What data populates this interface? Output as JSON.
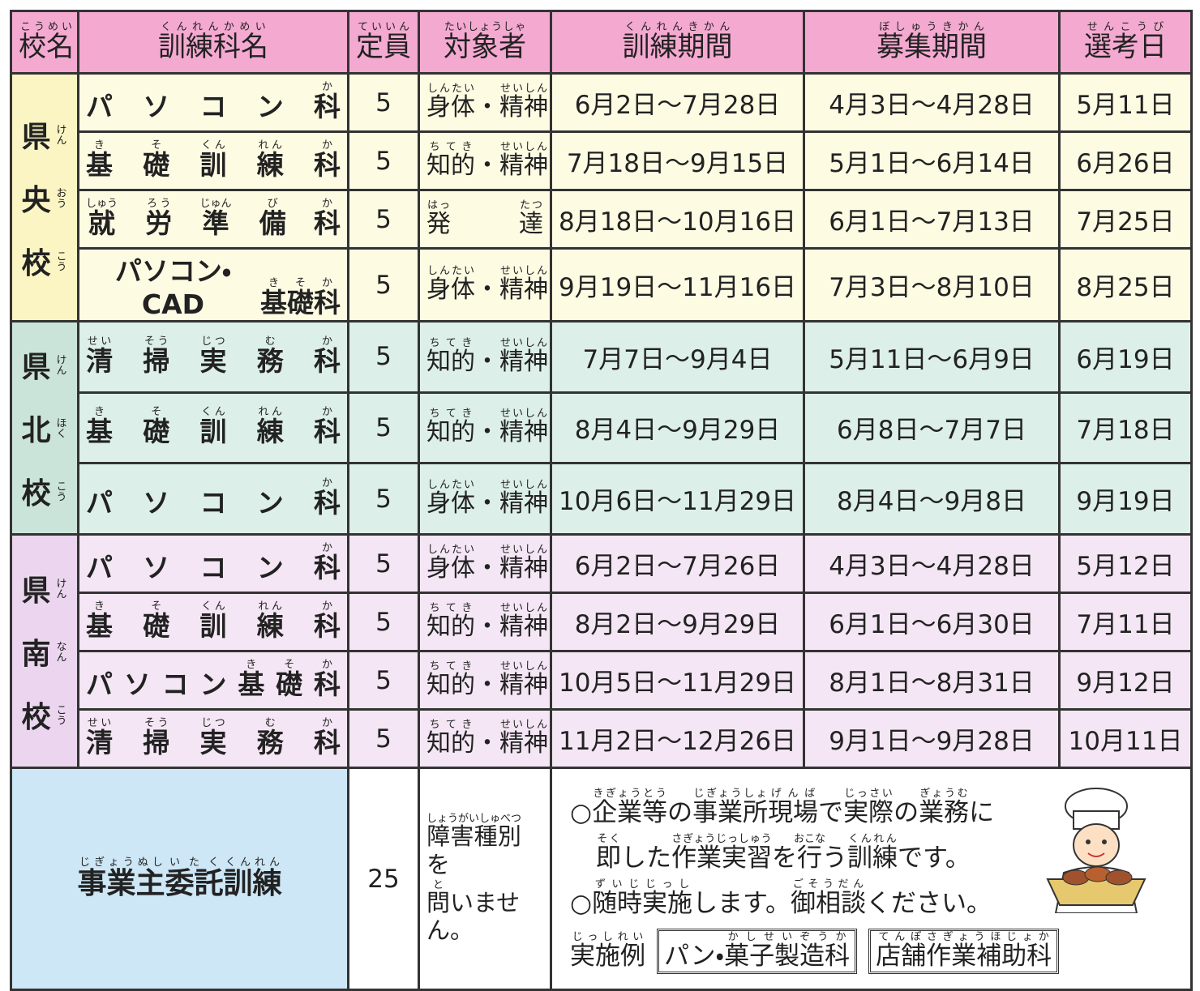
{
  "header": [
    [
      {
        "t": "校名",
        "r": "こうめい"
      }
    ],
    [
      {
        "t": "訓練科名",
        "r": "くんれんかめい"
      }
    ],
    [
      {
        "t": "定員",
        "r": "ていいん"
      }
    ],
    [
      {
        "t": "対象者",
        "r": "たいしょうしゃ"
      }
    ],
    [
      {
        "t": "訓練期間",
        "r": "くんれんきかん"
      }
    ],
    [
      {
        "t": "募集期間",
        "r": "ぼしゅうきかん"
      }
    ],
    [
      {
        "t": "選考日",
        "r": "せんこうび"
      }
    ]
  ],
  "schools": [
    {
      "name": [
        {
          "t": "県",
          "r": "けん"
        },
        {
          "t": "央",
          "r": "おう"
        },
        {
          "t": "校",
          "r": "こう"
        }
      ],
      "courses": [
        {
          "course": [
            {
              "t": "パ"
            },
            {
              "t": "ソ"
            },
            {
              "t": "コ"
            },
            {
              "t": "ン"
            },
            {
              "t": "科",
              "r": "か"
            }
          ],
          "capacity": 5,
          "target": [
            {
              "t": "身体",
              "r": "しんたい"
            },
            {
              "t": "・"
            },
            {
              "t": "精神",
              "r": "せいしん"
            }
          ],
          "training": "6月2日～7月28日",
          "recruitment": "4月3日～4月28日",
          "selection": "5月11日"
        },
        {
          "course": [
            {
              "t": "基",
              "r": "き"
            },
            {
              "t": "礎",
              "r": "そ"
            },
            {
              "t": "訓",
              "r": "くん"
            },
            {
              "t": "練",
              "r": "れん"
            },
            {
              "t": "科",
              "r": "か"
            }
          ],
          "capacity": 5,
          "target": [
            {
              "t": "知的",
              "r": "ちてき"
            },
            {
              "t": "・"
            },
            {
              "t": "精神",
              "r": "せいしん"
            }
          ],
          "training": "7月18日～9月15日",
          "recruitment": "5月1日～6月14日",
          "selection": "6月26日"
        },
        {
          "course": [
            {
              "t": "就",
              "r": "しゅう"
            },
            {
              "t": "労",
              "r": "ろう"
            },
            {
              "t": "準",
              "r": "じゅん"
            },
            {
              "t": "備",
              "r": "び"
            },
            {
              "t": "科",
              "r": "か"
            }
          ],
          "capacity": 5,
          "target": [
            {
              "t": "発",
              "r": "はっ"
            },
            {
              "t": "達",
              "r": "たつ"
            }
          ],
          "training": "8月18日～10月16日",
          "recruitment": "6月1日～7月13日",
          "selection": "7月25日"
        },
        {
          "course": [
            {
              "t": "パソコン・CAD"
            },
            {
              "t": "基",
              "r": "き"
            },
            {
              "t": "礎",
              "r": "そ"
            },
            {
              "t": "科",
              "r": "か"
            }
          ],
          "capacity": 5,
          "target": [
            {
              "t": "身体",
              "r": "しんたい"
            },
            {
              "t": "・"
            },
            {
              "t": "精神",
              "r": "せいしん"
            }
          ],
          "training": "9月19日～11月16日",
          "recruitment": "7月3日～8月10日",
          "selection": "8月25日"
        }
      ]
    },
    {
      "name": [
        {
          "t": "県",
          "r": "けん"
        },
        {
          "t": "北",
          "r": "ほく"
        },
        {
          "t": "校",
          "r": "こう"
        }
      ],
      "courses": [
        {
          "course": [
            {
              "t": "清",
              "r": "せい"
            },
            {
              "t": "掃",
              "r": "そう"
            },
            {
              "t": "実",
              "r": "じつ"
            },
            {
              "t": "務",
              "r": "む"
            },
            {
              "t": "科",
              "r": "か"
            }
          ],
          "capacity": 5,
          "target": [
            {
              "t": "知的",
              "r": "ちてき"
            },
            {
              "t": "・"
            },
            {
              "t": "精神",
              "r": "せいしん"
            }
          ],
          "training": "7月7日～9月4日",
          "recruitment": "5月11日～6月9日",
          "selection": "6月19日"
        },
        {
          "course": [
            {
              "t": "基",
              "r": "き"
            },
            {
              "t": "礎",
              "r": "そ"
            },
            {
              "t": "訓",
              "r": "くん"
            },
            {
              "t": "練",
              "r": "れん"
            },
            {
              "t": "科",
              "r": "か"
            }
          ],
          "capacity": 5,
          "target": [
            {
              "t": "知的",
              "r": "ちてき"
            },
            {
              "t": "・"
            },
            {
              "t": "精神",
              "r": "せいしん"
            }
          ],
          "training": "8月4日～9月29日",
          "recruitment": "6月8日～7月7日",
          "selection": "7月18日"
        },
        {
          "course": [
            {
              "t": "パ"
            },
            {
              "t": "ソ"
            },
            {
              "t": "コ"
            },
            {
              "t": "ン"
            },
            {
              "t": "科",
              "r": "か"
            }
          ],
          "capacity": 5,
          "target": [
            {
              "t": "身体",
              "r": "しんたい"
            },
            {
              "t": "・"
            },
            {
              "t": "精神",
              "r": "せいしん"
            }
          ],
          "training": "10月6日～11月29日",
          "recruitment": "8月4日～9月8日",
          "selection": "9月19日"
        }
      ]
    },
    {
      "name": [
        {
          "t": "県",
          "r": "けん"
        },
        {
          "t": "南",
          "r": "なん"
        },
        {
          "t": "校",
          "r": "こう"
        }
      ],
      "courses": [
        {
          "course": [
            {
              "t": "パ"
            },
            {
              "t": "ソ"
            },
            {
              "t": "コ"
            },
            {
              "t": "ン"
            },
            {
              "t": "科",
              "r": "か"
            }
          ],
          "capacity": 5,
          "target": [
            {
              "t": "身体",
              "r": "しんたい"
            },
            {
              "t": "・"
            },
            {
              "t": "精神",
              "r": "せいしん"
            }
          ],
          "training": "6月2日～7月26日",
          "recruitment": "4月3日～4月28日",
          "selection": "5月12日"
        },
        {
          "course": [
            {
              "t": "基",
              "r": "き"
            },
            {
              "t": "礎",
              "r": "そ"
            },
            {
              "t": "訓",
              "r": "くん"
            },
            {
              "t": "練",
              "r": "れん"
            },
            {
              "t": "科",
              "r": "か"
            }
          ],
          "capacity": 5,
          "target": [
            {
              "t": "知的",
              "r": "ちてき"
            },
            {
              "t": "・"
            },
            {
              "t": "精神",
              "r": "せいしん"
            }
          ],
          "training": "8月2日～9月29日",
          "recruitment": "6月1日～6月30日",
          "selection": "7月11日"
        },
        {
          "course": [
            {
              "t": "パ"
            },
            {
              "t": "ソ"
            },
            {
              "t": "コ"
            },
            {
              "t": "ン"
            },
            {
              "t": "基",
              "r": "き"
            },
            {
              "t": "礎",
              "r": "そ"
            },
            {
              "t": "科",
              "r": "か"
            }
          ],
          "capacity": 5,
          "target": [
            {
              "t": "知的",
              "r": "ちてき"
            },
            {
              "t": "・"
            },
            {
              "t": "精神",
              "r": "せいしん"
            }
          ],
          "training": "10月5日～11月29日",
          "recruitment": "8月1日～8月31日",
          "selection": "9月12日"
        },
        {
          "course": [
            {
              "t": "清",
              "r": "せい"
            },
            {
              "t": "掃",
              "r": "そう"
            },
            {
              "t": "実",
              "r": "じつ"
            },
            {
              "t": "務",
              "r": "む"
            },
            {
              "t": "科",
              "r": "か"
            }
          ],
          "capacity": 5,
          "target": [
            {
              "t": "知的",
              "r": "ちてき"
            },
            {
              "t": "・"
            },
            {
              "t": "精神",
              "r": "せいしん"
            }
          ],
          "training": "11月2日～12月26日",
          "recruitment": "9月1日～9月28日",
          "selection": "10月11日"
        }
      ]
    }
  ],
  "employer": {
    "name": [
      {
        "t": "事業主",
        "r": "じぎょうぬし"
      },
      {
        "t": "委託",
        "r": "いたく"
      },
      {
        "t": "訓練",
        "r": "くんれん"
      }
    ],
    "capacity": 25,
    "target": [
      [
        {
          "t": "障害種別",
          "r": "しょうがいしゅべつ"
        },
        {
          "t": "を"
        }
      ],
      [
        {
          "t": "問",
          "r": "と"
        },
        {
          "t": "いません。"
        }
      ]
    ],
    "lines": [
      [
        {
          "t": "○"
        },
        {
          "t": "企業等",
          "r": "きぎょうとう"
        },
        {
          "t": "の"
        },
        {
          "t": "事業所",
          "r": "じぎょうしょ"
        },
        {
          "t": "現場",
          "r": "げんば"
        },
        {
          "t": "で"
        },
        {
          "t": "実際",
          "r": "じっさい"
        },
        {
          "t": "の"
        },
        {
          "t": "業務",
          "r": "ぎょうむ"
        },
        {
          "t": "に"
        }
      ],
      [
        {
          "t": "即",
          "r": "そく"
        },
        {
          "t": "した"
        },
        {
          "t": "作業実習",
          "r": "さぎょうじっしゅう"
        },
        {
          "t": "を"
        },
        {
          "t": "行",
          "r": "おこな"
        },
        {
          "t": "う"
        },
        {
          "t": "訓練",
          "r": "くんれん"
        },
        {
          "t": "です。"
        }
      ],
      [
        {
          "t": "○"
        },
        {
          "t": "随時実施",
          "r": "ずいじじっし"
        },
        {
          "t": "します。"
        },
        {
          "t": "御相談",
          "r": "ごそうだん"
        },
        {
          "t": "ください。"
        }
      ]
    ],
    "example_label": [
      {
        "t": "実施例",
        "r": "じっしれい"
      }
    ],
    "examples": [
      [
        {
          "t": "パン・"
        },
        {
          "t": "菓子製造科",
          "r": "かしせいぞうか"
        }
      ],
      [
        {
          "t": "店舗作業補助科",
          "r": "てんぽさぎょうほじょか"
        }
      ]
    ]
  }
}
